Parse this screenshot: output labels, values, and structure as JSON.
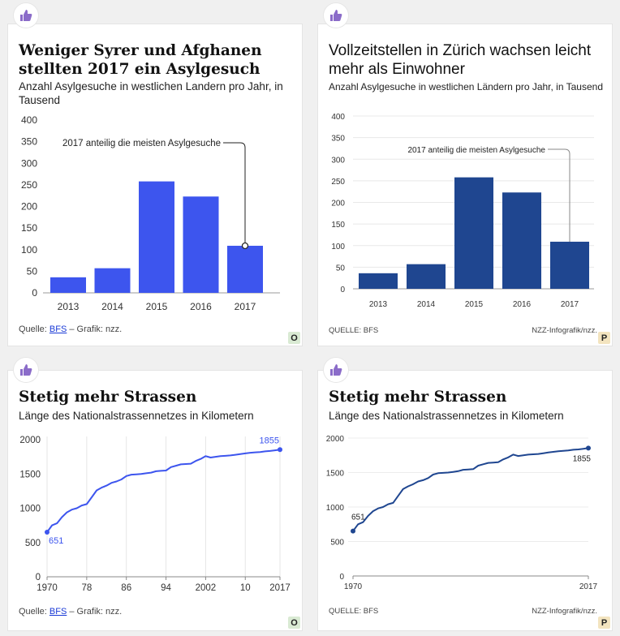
{
  "colors": {
    "blue_bright": "#3d55ee",
    "blue_dark": "#1f4690",
    "thumb": "#8b6cc9"
  },
  "panels": [
    {
      "id": "o1",
      "badge": "O",
      "title_lines": [
        "Weniger Syrer und Afghanen",
        "stellten 2017 ein Asylgesuch"
      ],
      "subtitle_lines": [
        "Anzahl Asylgesuche in westlichen Landern pro Jahr, in",
        "Tausend"
      ],
      "source_prefix": "Quelle: ",
      "source_link": "BFS",
      "source_suffix": " – Grafik: nzz.",
      "credit": ""
    },
    {
      "id": "p1",
      "badge": "P",
      "title_lines": [
        "Vollzeitstellen in Zürich wachsen leicht",
        "mehr als Einwohner"
      ],
      "subtitle_lines": [
        "Anzahl Asylgesuche in westlichen Ländern pro Jahr, in Tausend"
      ],
      "source_prefix": "QUELLE: BFS",
      "source_link": "",
      "source_suffix": "",
      "credit": "NZZ-Infografik/nzz."
    },
    {
      "id": "o2",
      "badge": "O",
      "title_lines": [
        "Stetig mehr Strassen"
      ],
      "subtitle_lines": [
        "Länge des Nationalstrassennetzes in Kilometern"
      ],
      "source_prefix": "Quelle: ",
      "source_link": "BFS",
      "source_suffix": " – Grafik: nzz.",
      "credit": ""
    },
    {
      "id": "p2",
      "badge": "P",
      "title_lines": [
        "Stetig mehr Strassen"
      ],
      "subtitle_lines": [
        "Länge des Nationalstrassennetzes in Kilometern"
      ],
      "source_prefix": "QUELLE: BFS",
      "source_link": "",
      "source_suffix": "",
      "credit": "NZZ-Infografik/nzz."
    }
  ],
  "chart_data": [
    {
      "type": "bar",
      "categories": [
        "2013",
        "2014",
        "2015",
        "2016",
        "2017"
      ],
      "values": [
        36,
        57,
        258,
        223,
        109
      ],
      "ylim": [
        0,
        400
      ],
      "yticks": [
        "0",
        "50",
        "100",
        "150",
        "200",
        "250",
        "300",
        "350",
        "400"
      ],
      "annotation": "2017 anteilig die meisten Asylgesuche",
      "annotation_index": 4,
      "color": "#3d55ee"
    },
    {
      "type": "bar",
      "categories": [
        "2013",
        "2014",
        "2015",
        "2016",
        "2017"
      ],
      "values": [
        36,
        57,
        258,
        223,
        109
      ],
      "ylim": [
        0,
        400
      ],
      "yticks": [
        "0",
        "50",
        "100",
        "150",
        "200",
        "250",
        "300",
        "350",
        "400"
      ],
      "annotation": "2017 anteilig die meisten Asylgesuche",
      "annotation_index": 4,
      "color": "#1f4690"
    },
    {
      "type": "line",
      "x": [
        1970,
        1971,
        1972,
        1973,
        1974,
        1975,
        1976,
        1977,
        1978,
        1979,
        1980,
        1981,
        1982,
        1983,
        1984,
        1985,
        1986,
        1987,
        1988,
        1989,
        1990,
        1991,
        1992,
        1993,
        1994,
        1995,
        1996,
        1997,
        1998,
        1999,
        2000,
        2001,
        2002,
        2003,
        2004,
        2005,
        2006,
        2007,
        2008,
        2009,
        2010,
        2011,
        2012,
        2013,
        2014,
        2015,
        2016,
        2017
      ],
      "y": [
        651,
        750,
        780,
        870,
        940,
        980,
        1000,
        1040,
        1060,
        1160,
        1260,
        1300,
        1330,
        1370,
        1390,
        1420,
        1470,
        1490,
        1495,
        1500,
        1510,
        1520,
        1540,
        1545,
        1550,
        1600,
        1620,
        1640,
        1645,
        1650,
        1690,
        1720,
        1760,
        1740,
        1750,
        1760,
        1765,
        1770,
        1780,
        1790,
        1800,
        1810,
        1815,
        1820,
        1830,
        1835,
        1845,
        1855
      ],
      "ylim": [
        0,
        2000
      ],
      "yticks": [
        "0",
        "500",
        "1000",
        "1500",
        "2000"
      ],
      "xticks": [
        1970,
        1978,
        1986,
        1994,
        2002,
        2010,
        2017
      ],
      "xtick_labels": [
        "1970",
        "78",
        "86",
        "94",
        "2002",
        "10",
        "2017"
      ],
      "start_label": "651",
      "end_label": "1855",
      "color": "#3d55ee"
    },
    {
      "type": "line",
      "x": [
        1970,
        1971,
        1972,
        1973,
        1974,
        1975,
        1976,
        1977,
        1978,
        1979,
        1980,
        1981,
        1982,
        1983,
        1984,
        1985,
        1986,
        1987,
        1988,
        1989,
        1990,
        1991,
        1992,
        1993,
        1994,
        1995,
        1996,
        1997,
        1998,
        1999,
        2000,
        2001,
        2002,
        2003,
        2004,
        2005,
        2006,
        2007,
        2008,
        2009,
        2010,
        2011,
        2012,
        2013,
        2014,
        2015,
        2016,
        2017
      ],
      "y": [
        651,
        750,
        780,
        870,
        940,
        980,
        1000,
        1040,
        1060,
        1160,
        1260,
        1300,
        1330,
        1370,
        1390,
        1420,
        1470,
        1490,
        1495,
        1500,
        1510,
        1520,
        1540,
        1545,
        1550,
        1600,
        1620,
        1640,
        1645,
        1650,
        1690,
        1720,
        1760,
        1740,
        1750,
        1760,
        1765,
        1770,
        1780,
        1790,
        1800,
        1810,
        1815,
        1820,
        1830,
        1835,
        1845,
        1855
      ],
      "ylim": [
        0,
        2000
      ],
      "yticks": [
        "0",
        "500",
        "1000",
        "1500",
        "2000"
      ],
      "xticks": [
        1970,
        2017
      ],
      "xtick_labels": [
        "1970",
        "2017"
      ],
      "start_label": "651",
      "end_label": "1855",
      "color": "#1f4690"
    }
  ]
}
